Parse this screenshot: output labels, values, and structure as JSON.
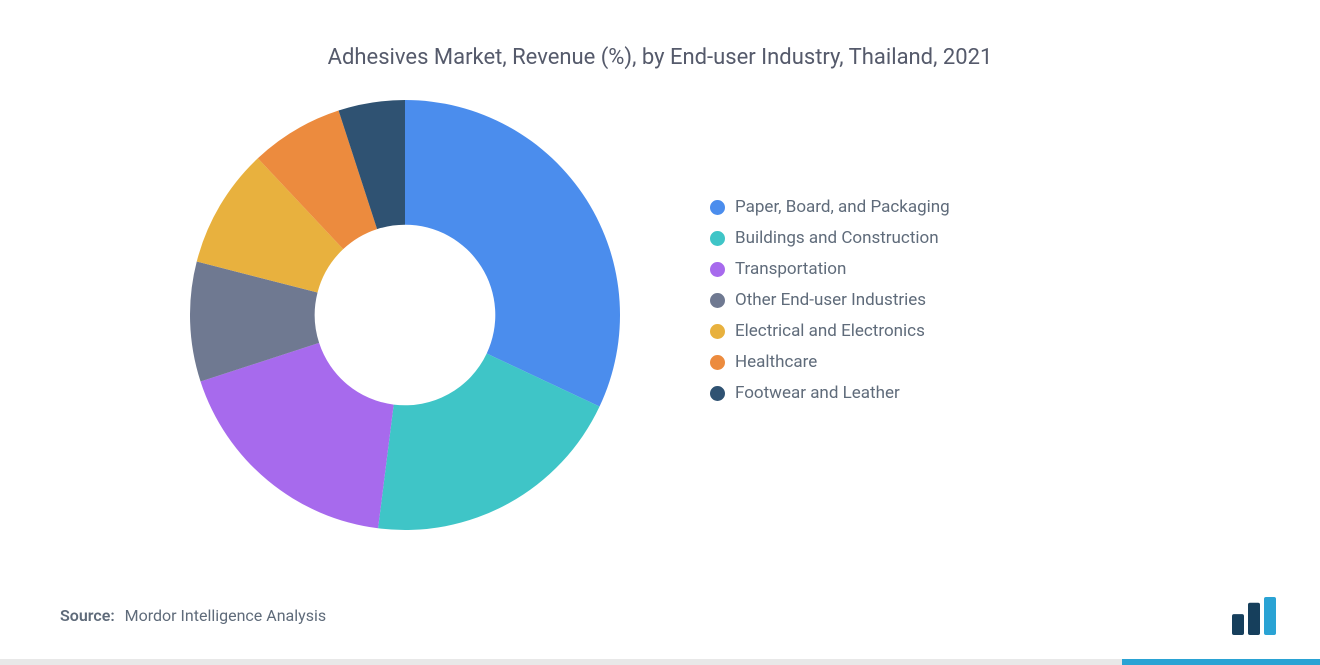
{
  "chart": {
    "type": "donut",
    "title": "Adhesives Market, Revenue (%), by End-user Industry, Thailand, 2021",
    "title_fontsize": 22,
    "title_color": "#555a6b",
    "background_color": "#ffffff",
    "donut_inner_radius_ratio": 0.42,
    "donut_outer_radius_ratio": 1.0,
    "slices": [
      {
        "label": "Paper, Board, and Packaging",
        "value": 32,
        "color": "#4b8ded"
      },
      {
        "label": "Buildings and Construction",
        "value": 20,
        "color": "#3fc5c7"
      },
      {
        "label": "Transportation",
        "value": 18,
        "color": "#a76aed"
      },
      {
        "label": "Other End-user Industries",
        "value": 9,
        "color": "#6f7991"
      },
      {
        "label": "Electrical and Electronics",
        "value": 9,
        "color": "#e8b13e"
      },
      {
        "label": "Healthcare",
        "value": 7,
        "color": "#ec8b3e"
      },
      {
        "label": "Footwear and Leather",
        "value": 5,
        "color": "#2f5272"
      }
    ],
    "legend": {
      "position": "right",
      "font_size": 17,
      "text_color": "#5f6b7a",
      "swatch_shape": "circle",
      "swatch_size": 15
    },
    "start_angle_deg": -90
  },
  "source": {
    "label": "Source:",
    "text": "Mordor Intelligence Analysis",
    "font_size": 16,
    "color": "#5f6b7a"
  },
  "logo": {
    "bars": [
      {
        "color": "#163f5c",
        "height_ratio": 0.55
      },
      {
        "color": "#163f5c",
        "height_ratio": 0.85
      },
      {
        "color": "#2aa3d4",
        "height_ratio": 1.0
      }
    ]
  },
  "bottom_border": {
    "main_color": "#e8e8e8",
    "accent_color": "#2aa3d4",
    "accent_start_pct": 85
  }
}
